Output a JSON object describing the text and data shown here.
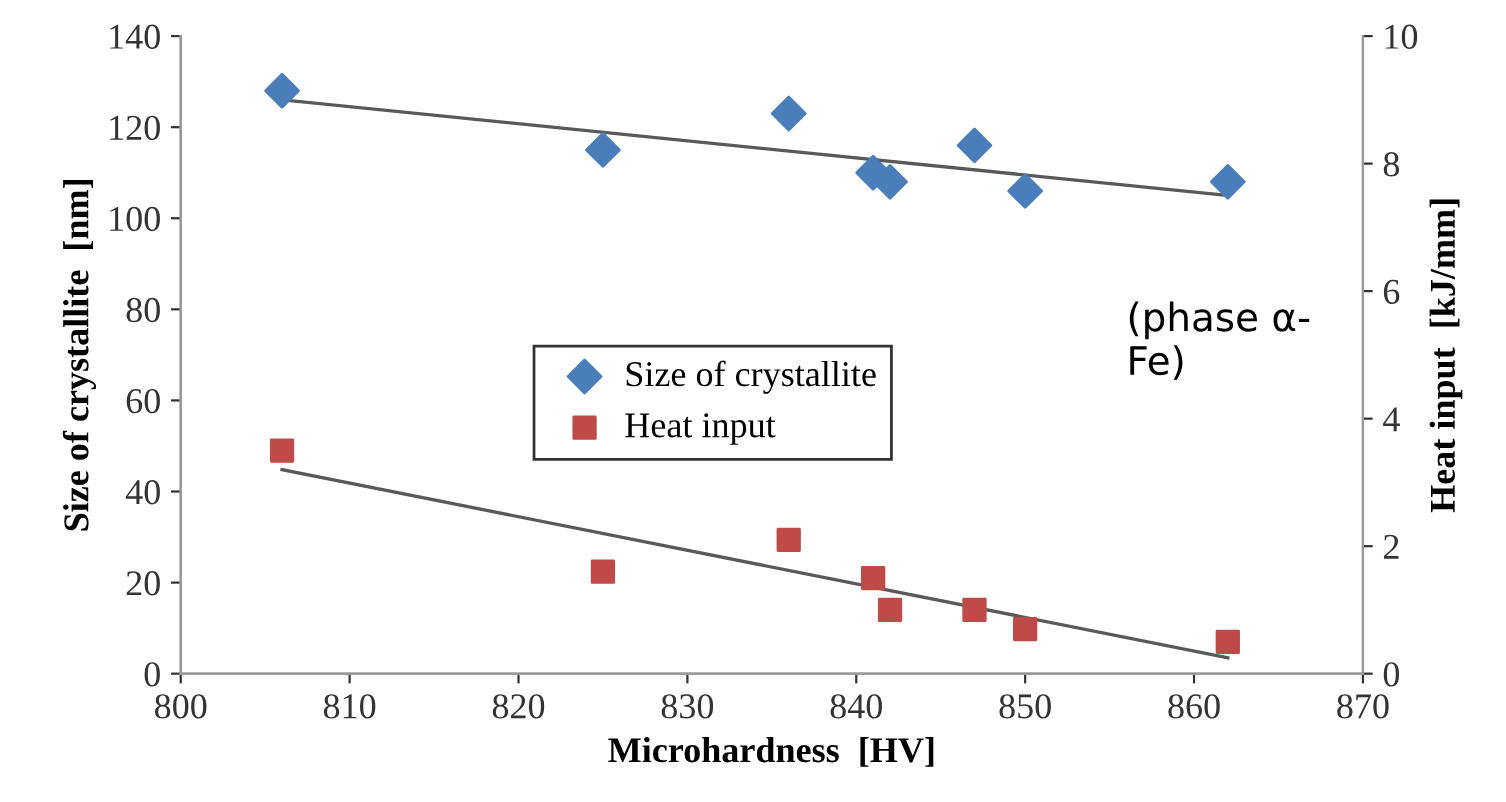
{
  "chart_data": {
    "type": "scatter",
    "xlabel": "Microhardness  [HV]",
    "ylabel": "Size of crystallite  [nm]",
    "y2label": "Heat input  [kJ/mm]",
    "xlim": [
      800,
      870
    ],
    "xticks": [
      800,
      810,
      820,
      830,
      840,
      850,
      860,
      870
    ],
    "ylim": [
      0,
      140
    ],
    "yticks": [
      0,
      20,
      40,
      60,
      80,
      100,
      120,
      140
    ],
    "y2lim": [
      0,
      10
    ],
    "y2ticks": [
      0,
      2,
      4,
      6,
      8,
      10
    ],
    "grid": false,
    "legend": "center",
    "annotations": [
      "(phase α-\nFe)"
    ],
    "series": [
      {
        "name": "Size of crystallite",
        "color": "#4a7ebb",
        "marker": "diamond",
        "x": [
          806,
          825,
          836,
          841,
          842,
          847,
          850,
          862
        ],
        "values": [
          128,
          115,
          123,
          110,
          108,
          116,
          106,
          108
        ]
      },
      {
        "name": "Heat input",
        "color": "#be4b48",
        "marker": "square",
        "axis": "y2",
        "x": [
          806,
          825,
          836,
          841,
          842,
          847,
          850,
          862
        ],
        "values": [
          3.5,
          1.6,
          2.1,
          1.5,
          1.0,
          1.0,
          0.7,
          0.5
        ]
      },
      {
        "type": "line",
        "color": "#595959",
        "marker": "none",
        "x": [
          806,
          862
        ],
        "values": [
          126,
          105
        ]
      },
      {
        "type": "line",
        "color": "#595959",
        "marker": "none",
        "axis": "y2",
        "x": [
          806,
          862
        ],
        "values": [
          3.2,
          0.25
        ]
      }
    ]
  }
}
